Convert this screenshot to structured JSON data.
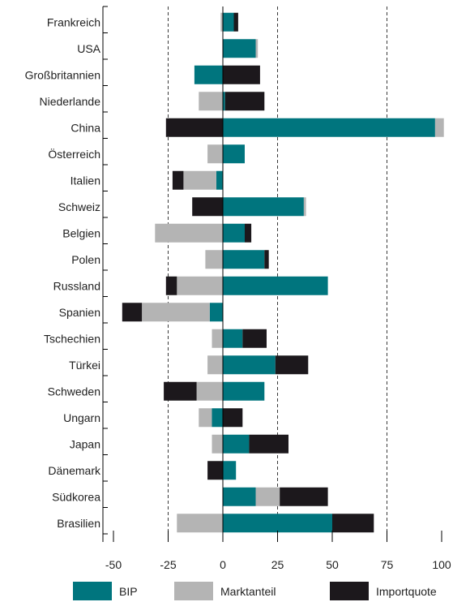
{
  "chart_data": {
    "type": "bar",
    "orientation": "horizontal",
    "stacked": "diverging",
    "title": "",
    "xlabel": "",
    "ylabel": "",
    "xlim": [
      -50,
      100
    ],
    "x_ticks": [
      -50,
      -25,
      0,
      25,
      50,
      75,
      100
    ],
    "x_tick_labels": [
      "-50",
      "-25",
      "0",
      "25",
      "50",
      "75",
      "100"
    ],
    "grid": "vertical dashed at -25, 25, 75",
    "legend_position": "bottom",
    "categories": [
      "Frankreich",
      "USA",
      "Großbritannien",
      "Niederlande",
      "China",
      "Österreich",
      "Italien",
      "Schweiz",
      "Belgien",
      "Polen",
      "Russland",
      "Spanien",
      "Tschechien",
      "Türkei",
      "Schweden",
      "Ungarn",
      "Japan",
      "Dänemark",
      "Südkorea",
      "Brasilien"
    ],
    "series": [
      {
        "name": "BIP",
        "color": "#00757e",
        "values": [
          5,
          15,
          -13,
          1,
          97,
          10,
          -3,
          37,
          10,
          19,
          48,
          -6,
          9,
          24,
          19,
          -5,
          12,
          6,
          15,
          50
        ]
      },
      {
        "name": "Marktanteil",
        "color": "#b4b4b4",
        "values": [
          -1,
          1,
          0,
          -11,
          4,
          -7,
          -15,
          1,
          -31,
          -8,
          -21,
          -31,
          -5,
          -7,
          -12,
          -6,
          -5,
          0,
          11,
          -21
        ]
      },
      {
        "name": "Importquote",
        "color": "#1c181c",
        "values": [
          2,
          0,
          17,
          18,
          -26,
          0,
          -5,
          -14,
          3,
          2,
          -5,
          -9,
          11,
          15,
          -15,
          9,
          18,
          -7,
          22,
          19
        ]
      }
    ]
  }
}
